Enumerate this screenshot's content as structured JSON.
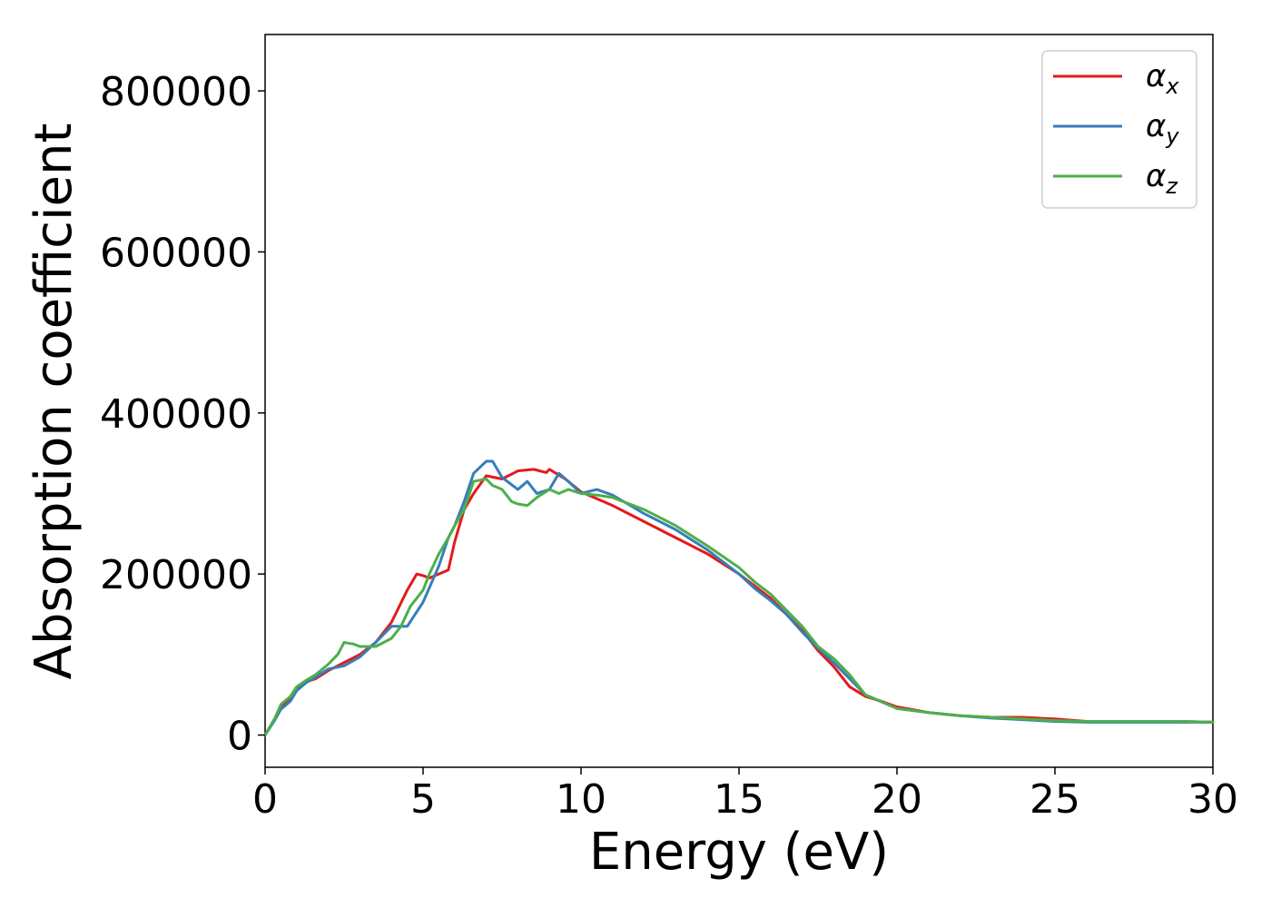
{
  "chart_data": {
    "type": "line",
    "title": "",
    "xlabel": "Energy (eV)",
    "ylabel": "Absorption coefficient",
    "xlim": [
      0,
      30
    ],
    "ylim": [
      -40000,
      870000
    ],
    "xticks": [
      0,
      5,
      10,
      15,
      20,
      25,
      30
    ],
    "yticks": [
      0,
      200000,
      400000,
      600000,
      800000
    ],
    "xtick_labels": [
      "0",
      "5",
      "10",
      "15",
      "20",
      "25",
      "30"
    ],
    "ytick_labels": [
      "0",
      "200000",
      "400000",
      "600000",
      "800000"
    ],
    "grid": false,
    "legend_position": "top-right",
    "series": [
      {
        "name": "α_x",
        "legend_main": "α",
        "legend_sub": "x",
        "color": "#e41a1c",
        "x": [
          0,
          0.3,
          0.5,
          0.8,
          1.0,
          1.3,
          1.6,
          2.0,
          2.5,
          3.0,
          3.5,
          4.0,
          4.5,
          4.8,
          5.0,
          5.2,
          5.5,
          5.8,
          6.0,
          6.3,
          6.6,
          7.0,
          7.5,
          8.0,
          8.5,
          8.9,
          9.0,
          9.5,
          10.0,
          11.0,
          12.0,
          13.0,
          14.0,
          15.0,
          15.5,
          16.0,
          16.5,
          17.0,
          17.5,
          18.0,
          18.5,
          19.0,
          19.5,
          20.0,
          21.0,
          22.0,
          23.0,
          24.0,
          25.0,
          26.0,
          27.0,
          28.0,
          29.0,
          30.0
        ],
        "y": [
          0,
          20000,
          35000,
          45000,
          58000,
          66000,
          70000,
          80000,
          90000,
          100000,
          115000,
          140000,
          180000,
          200000,
          198000,
          195000,
          200000,
          205000,
          240000,
          280000,
          300000,
          322000,
          318000,
          328000,
          330000,
          326000,
          330000,
          318000,
          302000,
          285000,
          265000,
          245000,
          225000,
          200000,
          185000,
          170000,
          150000,
          130000,
          105000,
          85000,
          60000,
          48000,
          42000,
          35000,
          28000,
          24000,
          22000,
          22000,
          20000,
          17000,
          17000,
          17000,
          17000,
          16000
        ]
      },
      {
        "name": "α_y",
        "legend_main": "α",
        "legend_sub": "y",
        "color": "#377eb8",
        "x": [
          0,
          0.3,
          0.5,
          0.8,
          1.0,
          1.3,
          1.6,
          2.0,
          2.5,
          3.0,
          3.5,
          4.0,
          4.5,
          5.0,
          5.5,
          5.8,
          6.0,
          6.3,
          6.6,
          7.0,
          7.2,
          7.5,
          8.0,
          8.3,
          8.6,
          9.0,
          9.3,
          9.6,
          10.0,
          10.5,
          11.0,
          12.0,
          13.0,
          14.0,
          15.0,
          15.5,
          16.0,
          16.5,
          17.0,
          17.5,
          18.0,
          18.5,
          19.0,
          20.0,
          21.0,
          22.0,
          23.0,
          24.0,
          25.0,
          26.0,
          27.0,
          28.0,
          29.0,
          30.0
        ],
        "y": [
          0,
          18000,
          32000,
          42000,
          55000,
          65000,
          72000,
          82000,
          86000,
          97000,
          115000,
          135000,
          135000,
          165000,
          210000,
          245000,
          260000,
          290000,
          325000,
          340000,
          340000,
          320000,
          305000,
          315000,
          300000,
          305000,
          325000,
          315000,
          300000,
          305000,
          298000,
          275000,
          255000,
          230000,
          200000,
          182000,
          167000,
          150000,
          128000,
          108000,
          90000,
          70000,
          50000,
          33000,
          28000,
          24000,
          21000,
          19000,
          17000,
          16000,
          16000,
          16000,
          16000,
          16000
        ]
      },
      {
        "name": "α_z",
        "legend_main": "α",
        "legend_sub": "z",
        "color": "#4daf4a",
        "x": [
          0,
          0.3,
          0.5,
          0.8,
          1.0,
          1.3,
          1.6,
          2.0,
          2.3,
          2.5,
          2.8,
          3.0,
          3.5,
          4.0,
          4.3,
          4.6,
          5.0,
          5.2,
          5.5,
          5.8,
          6.0,
          6.3,
          6.6,
          7.0,
          7.2,
          7.5,
          7.8,
          8.0,
          8.3,
          8.6,
          9.0,
          9.3,
          9.6,
          10.0,
          10.5,
          11.0,
          12.0,
          13.0,
          14.0,
          15.0,
          15.5,
          16.0,
          16.5,
          17.0,
          17.5,
          18.0,
          18.5,
          19.0,
          20.0,
          21.0,
          22.0,
          23.0,
          24.0,
          25.0,
          26.0,
          27.0,
          28.0,
          29.0,
          30.0
        ],
        "y": [
          0,
          20000,
          38000,
          48000,
          60000,
          68000,
          75000,
          88000,
          100000,
          115000,
          113000,
          110000,
          110000,
          120000,
          135000,
          160000,
          180000,
          200000,
          225000,
          245000,
          260000,
          280000,
          315000,
          318000,
          310000,
          305000,
          290000,
          287000,
          285000,
          295000,
          305000,
          300000,
          305000,
          300000,
          298000,
          295000,
          280000,
          260000,
          235000,
          208000,
          190000,
          175000,
          155000,
          135000,
          110000,
          95000,
          75000,
          50000,
          33000,
          28000,
          24000,
          22000,
          20000,
          18000,
          17000,
          17000,
          17000,
          17000,
          16000
        ]
      }
    ]
  }
}
